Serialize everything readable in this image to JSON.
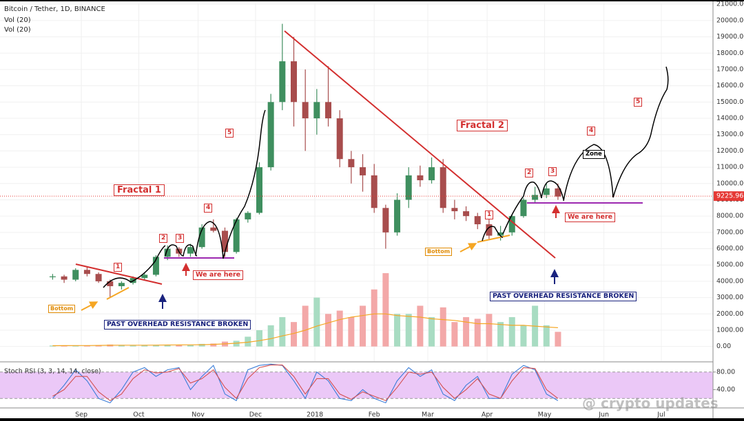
{
  "header": {
    "symbol": "Bitcoin / Tether, 1D, BINANCE",
    "indicators": [
      "Vol (20)",
      "Vol (20)"
    ]
  },
  "watermark": "@ crypto updates",
  "chart_data": [
    {
      "type": "candlestick",
      "x": [
        16,
        22,
        28,
        34,
        40,
        46,
        52,
        58,
        64,
        70,
        76,
        82,
        88,
        94,
        100,
        106,
        112,
        118,
        124,
        130,
        136,
        142,
        148,
        154,
        160,
        166,
        172,
        178,
        184,
        190,
        196,
        202,
        208,
        214,
        220,
        226,
        232,
        238,
        244,
        250,
        256,
        262,
        268,
        274,
        280
      ],
      "open": [
        4250,
        4300,
        4100,
        4700,
        4450,
        4000,
        3700,
        3900,
        4200,
        4400,
        5500,
        6000,
        5700,
        6100,
        7300,
        7100,
        5800,
        7800,
        8200,
        11000,
        15000,
        17500,
        15000,
        14000,
        15000,
        14000,
        11500,
        11000,
        10500,
        8500,
        7000,
        9000,
        10500,
        10200,
        11000,
        8500,
        8300,
        8000,
        7500,
        6800,
        7000,
        8000,
        9000,
        9300,
        9700
      ],
      "high": [
        4450,
        4400,
        4800,
        4900,
        4550,
        4100,
        4000,
        4300,
        4500,
        5600,
        6200,
        6100,
        6300,
        7500,
        7800,
        7300,
        7900,
        8300,
        11300,
        15500,
        19800,
        19000,
        17000,
        15800,
        17200,
        14500,
        12000,
        11800,
        11200,
        8700,
        9400,
        11000,
        11100,
        11600,
        11500,
        9000,
        8600,
        8200,
        7800,
        7400,
        8100,
        9100,
        9800,
        10000,
        10000
      ],
      "low": [
        4100,
        3900,
        4000,
        4300,
        3900,
        3000,
        3500,
        3800,
        4100,
        4300,
        5300,
        5500,
        5500,
        6000,
        7000,
        5500,
        5700,
        7600,
        8100,
        10800,
        14500,
        13500,
        12000,
        13000,
        13500,
        11000,
        10000,
        9500,
        8200,
        6000,
        6800,
        8500,
        9800,
        10000,
        8200,
        7800,
        7700,
        7200,
        6600,
        6500,
        6800,
        7900,
        8800,
        9100,
        9000
      ],
      "close": [
        4300,
        4100,
        4700,
        4450,
        4000,
        3700,
        3900,
        4200,
        4400,
        5500,
        6000,
        5700,
        6100,
        7300,
        7100,
        5800,
        7800,
        8200,
        11000,
        15000,
        17500,
        15000,
        14000,
        15000,
        14000,
        11500,
        11000,
        10500,
        8500,
        7000,
        9000,
        10500,
        10200,
        11000,
        8500,
        8300,
        8000,
        7500,
        6800,
        7000,
        8000,
        9000,
        9300,
        9700,
        9200
      ],
      "volume": [
        60,
        50,
        70,
        60,
        80,
        120,
        70,
        60,
        70,
        80,
        100,
        90,
        110,
        160,
        180,
        300,
        350,
        600,
        1000,
        1300,
        1800,
        1500,
        2500,
        3000,
        2000,
        2200,
        1800,
        2500,
        3500,
        4500,
        2000,
        2000,
        2500,
        1800,
        2400,
        1500,
        1800,
        1700,
        2000,
        1500,
        1800,
        1300,
        2500,
        1300,
        900
      ],
      "volume_ma": [
        50,
        55,
        60,
        60,
        65,
        75,
        80,
        80,
        80,
        85,
        90,
        95,
        100,
        110,
        130,
        160,
        200,
        260,
        360,
        480,
        650,
        800,
        1000,
        1250,
        1450,
        1650,
        1800,
        1900,
        2000,
        2000,
        1900,
        1850,
        1800,
        1700,
        1650,
        1600,
        1500,
        1400,
        1400,
        1350,
        1300,
        1300,
        1250,
        1200,
        1150
      ],
      "up_color": "#3f8f5f",
      "down_color": "#a84d4d",
      "volume_up_color": "#a8dcc2",
      "volume_down_color": "#f3a8a8",
      "volume_ma_color": "#f5a623",
      "last_price": 9225.96,
      "last_price_color": "#e53935",
      "xlim": [
        -11.5,
        361
      ],
      "xticks": [
        {
          "value": 31,
          "label": "Sep"
        },
        {
          "value": 61,
          "label": "Oct"
        },
        {
          "value": 92,
          "label": "Nov"
        },
        {
          "value": 122,
          "label": "Dec"
        },
        {
          "value": 153,
          "label": "2018"
        },
        {
          "value": 184,
          "label": "Feb"
        },
        {
          "value": 212,
          "label": "Mar"
        },
        {
          "value": 243,
          "label": "Apr"
        },
        {
          "value": 273,
          "label": "May"
        },
        {
          "value": 304,
          "label": "Jun"
        },
        {
          "value": 334,
          "label": "Jul"
        }
      ],
      "ylim": [
        -900,
        21050
      ],
      "yticks": [
        {
          "value": 0,
          "label": "0.00"
        },
        {
          "value": 1000,
          "label": "1000.00"
        },
        {
          "value": 2000,
          "label": "2000.00"
        },
        {
          "value": 3000,
          "label": "3000.00"
        },
        {
          "value": 4000,
          "label": "4000.00"
        },
        {
          "value": 5000,
          "label": "5000.00"
        },
        {
          "value": 6000,
          "label": "6000.00"
        },
        {
          "value": 7000,
          "label": "7000.00"
        },
        {
          "value": 8000,
          "label": "8000.00"
        },
        {
          "value": 9000,
          "label": "9000.00"
        },
        {
          "value": 10000,
          "label": "10000.00"
        },
        {
          "value": 11000,
          "label": "11000.00"
        },
        {
          "value": 12000,
          "label": "12000.00"
        },
        {
          "value": 13000,
          "label": "13000.00"
        },
        {
          "value": 14000,
          "label": "14000.00"
        },
        {
          "value": 15000,
          "label": "15000.00"
        },
        {
          "value": 16000,
          "label": "16000.00"
        },
        {
          "value": 17000,
          "label": "17000.00"
        },
        {
          "value": 18000,
          "label": "18000.00"
        },
        {
          "value": 19000,
          "label": "19000.00"
        },
        {
          "value": 20000,
          "label": "20000.00"
        },
        {
          "value": 21000,
          "label": "21000.00"
        }
      ],
      "grid": true,
      "annotations": [
        "Fractal 1",
        "Fractal 2",
        "1",
        "2",
        "3",
        "4",
        "5",
        "1",
        "2",
        "3",
        "4",
        "5",
        "Bottom",
        "Bottom",
        "We are here",
        "We are here",
        "PAST OVERHEAD RESISTANCE BROKEN",
        "PAST OVERHEAD RESISTANCE BROKEN",
        "Zone"
      ]
    },
    {
      "type": "line",
      "title": "Stoch RSI (3, 3, 14, 14, close)",
      "x": [
        16,
        22,
        28,
        34,
        40,
        46,
        52,
        58,
        64,
        70,
        76,
        82,
        88,
        94,
        100,
        106,
        112,
        118,
        124,
        130,
        136,
        142,
        148,
        154,
        160,
        166,
        172,
        178,
        184,
        190,
        196,
        202,
        208,
        214,
        220,
        226,
        232,
        238,
        244,
        250,
        256,
        262,
        268,
        274,
        280
      ],
      "series": [
        {
          "color": "#3b7dd8",
          "values": [
            20,
            50,
            85,
            60,
            20,
            10,
            40,
            80,
            90,
            70,
            85,
            90,
            40,
            70,
            95,
            30,
            15,
            85,
            95,
            98,
            95,
            60,
            20,
            80,
            60,
            20,
            15,
            40,
            20,
            10,
            60,
            90,
            70,
            85,
            30,
            15,
            50,
            70,
            20,
            20,
            75,
            95,
            85,
            30,
            15
          ]
        },
        {
          "color": "#d45050",
          "values": [
            25,
            40,
            70,
            70,
            35,
            15,
            30,
            65,
            85,
            78,
            80,
            88,
            55,
            65,
            85,
            45,
            20,
            65,
            90,
            96,
            96,
            70,
            30,
            65,
            65,
            30,
            18,
            35,
            25,
            15,
            45,
            80,
            75,
            80,
            45,
            20,
            40,
            65,
            30,
            20,
            60,
            90,
            88,
            40,
            20
          ]
        }
      ],
      "band": [
        20,
        80
      ],
      "band_color": "#ebc8f7",
      "ylim": [
        0,
        100
      ],
      "yticks": [
        {
          "value": 40,
          "label": "40.00"
        },
        {
          "value": 80,
          "label": "80.00"
        }
      ]
    }
  ]
}
